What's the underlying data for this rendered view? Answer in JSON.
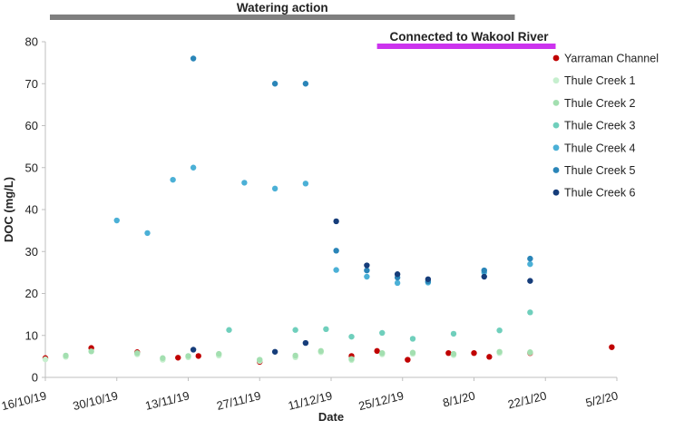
{
  "chart_data": {
    "type": "scatter",
    "xlabel": "Date",
    "ylabel": "DOC (mg/L)",
    "ylim": [
      0,
      80
    ],
    "yticks": [
      0,
      10,
      20,
      30,
      40,
      50,
      60,
      70,
      80
    ],
    "xlim": [
      "2019-10-16",
      "2020-02-05"
    ],
    "xticks": [
      {
        "date": "2019-10-16",
        "label": "16/10/19"
      },
      {
        "date": "2019-10-30",
        "label": "30/10/19"
      },
      {
        "date": "2019-11-13",
        "label": "13/11/19"
      },
      {
        "date": "2019-11-27",
        "label": "27/11/19"
      },
      {
        "date": "2019-12-11",
        "label": "11/12/19"
      },
      {
        "date": "2019-12-25",
        "label": "25/12/19"
      },
      {
        "date": "2020-01-08",
        "label": "8/1/20"
      },
      {
        "date": "2020-01-22",
        "label": "22/1/20"
      },
      {
        "date": "2020-02-05",
        "label": "5/2/20"
      }
    ],
    "grid": false,
    "legend_position": "right",
    "annotations": [
      {
        "label": "Watering action",
        "start": "2019-10-16",
        "end": "2020-01-16",
        "color": "#7f7f7f"
      },
      {
        "label": "Connected to Wakool River",
        "start": "2019-12-20",
        "end": "2020-01-24",
        "color": "#cc33ee"
      }
    ],
    "series": [
      {
        "name": "Yarraman Channel",
        "color": "#c00000",
        "points": [
          [
            "2019-10-16",
            4.6
          ],
          [
            "2019-10-25",
            7.0
          ],
          [
            "2019-11-03",
            6.0
          ],
          [
            "2019-11-11",
            4.7
          ],
          [
            "2019-11-15",
            5.1
          ],
          [
            "2019-11-27",
            3.7
          ],
          [
            "2019-12-15",
            5.1
          ],
          [
            "2019-12-20",
            6.3
          ],
          [
            "2019-12-26",
            4.2
          ],
          [
            "2020-01-03",
            5.8
          ],
          [
            "2020-01-08",
            5.8
          ],
          [
            "2020-01-11",
            4.9
          ],
          [
            "2020-01-19",
            5.8
          ],
          [
            "2020-02-04",
            7.2
          ]
        ]
      },
      {
        "name": "Thule Creek 1",
        "color": "#c6efce",
        "points": [
          [
            "2019-10-16",
            4.3
          ],
          [
            "2019-10-20",
            4.9
          ],
          [
            "2019-11-03",
            5.5
          ],
          [
            "2019-11-08",
            4.2
          ],
          [
            "2019-11-13",
            4.8
          ],
          [
            "2019-11-19",
            5.2
          ],
          [
            "2019-11-27",
            3.9
          ],
          [
            "2019-12-04",
            4.8
          ],
          [
            "2019-12-09",
            6.0
          ],
          [
            "2019-12-15",
            4.1
          ],
          [
            "2019-12-21",
            5.5
          ],
          [
            "2019-12-27",
            5.6
          ],
          [
            "2020-01-04",
            5.3
          ],
          [
            "2020-01-13",
            5.8
          ],
          [
            "2020-01-19",
            5.9
          ]
        ]
      },
      {
        "name": "Thule Creek 2",
        "color": "#a3dfb0",
        "points": [
          [
            "2019-10-20",
            5.2
          ],
          [
            "2019-10-25",
            6.2
          ],
          [
            "2019-11-03",
            5.8
          ],
          [
            "2019-11-08",
            4.6
          ],
          [
            "2019-11-13",
            5.1
          ],
          [
            "2019-11-19",
            5.6
          ],
          [
            "2019-11-27",
            4.2
          ],
          [
            "2019-12-04",
            5.2
          ],
          [
            "2019-12-09",
            6.3
          ],
          [
            "2019-12-15",
            4.4
          ],
          [
            "2019-12-21",
            5.8
          ],
          [
            "2019-12-27",
            5.9
          ],
          [
            "2020-01-04",
            5.6
          ],
          [
            "2020-01-13",
            6.1
          ],
          [
            "2020-01-19",
            6.0
          ]
        ]
      },
      {
        "name": "Thule Creek 3",
        "color": "#6fcfbc",
        "points": [
          [
            "2019-11-21",
            11.3
          ],
          [
            "2019-12-04",
            11.3
          ],
          [
            "2019-12-10",
            11.5
          ],
          [
            "2019-12-15",
            9.7
          ],
          [
            "2019-12-21",
            10.6
          ],
          [
            "2019-12-27",
            9.2
          ],
          [
            "2020-01-04",
            10.4
          ],
          [
            "2020-01-13",
            11.2
          ],
          [
            "2020-01-19",
            15.5
          ]
        ]
      },
      {
        "name": "Thule Creek 4",
        "color": "#4bb0d6",
        "points": [
          [
            "2019-10-30",
            37.4
          ],
          [
            "2019-11-05",
            34.4
          ],
          [
            "2019-11-10",
            47.1
          ],
          [
            "2019-11-14",
            50.0
          ],
          [
            "2019-11-24",
            46.4
          ],
          [
            "2019-11-30",
            45.0
          ],
          [
            "2019-12-06",
            46.2
          ],
          [
            "2019-12-12",
            25.6
          ],
          [
            "2019-12-18",
            24.0
          ],
          [
            "2019-12-24",
            22.5
          ],
          [
            "2019-12-30",
            22.6
          ],
          [
            "2020-01-10",
            25.0
          ],
          [
            "2020-01-19",
            27.0
          ]
        ]
      },
      {
        "name": "Thule Creek 5",
        "color": "#2a85b8",
        "points": [
          [
            "2019-11-14",
            76.0
          ],
          [
            "2019-11-30",
            70.0
          ],
          [
            "2019-12-06",
            70.0
          ],
          [
            "2019-12-12",
            30.2
          ],
          [
            "2019-12-18",
            25.5
          ],
          [
            "2019-12-24",
            23.8
          ],
          [
            "2019-12-30",
            22.9
          ],
          [
            "2020-01-10",
            25.5
          ],
          [
            "2020-01-19",
            28.3
          ]
        ]
      },
      {
        "name": "Thule Creek 6",
        "color": "#163d7a",
        "points": [
          [
            "2019-11-14",
            6.6
          ],
          [
            "2019-11-30",
            6.1
          ],
          [
            "2019-12-06",
            8.2
          ],
          [
            "2019-12-12",
            37.2
          ],
          [
            "2019-12-18",
            26.7
          ],
          [
            "2019-12-24",
            24.6
          ],
          [
            "2019-12-30",
            23.4
          ],
          [
            "2020-01-10",
            24.0
          ],
          [
            "2020-01-19",
            23.0
          ]
        ]
      }
    ]
  }
}
